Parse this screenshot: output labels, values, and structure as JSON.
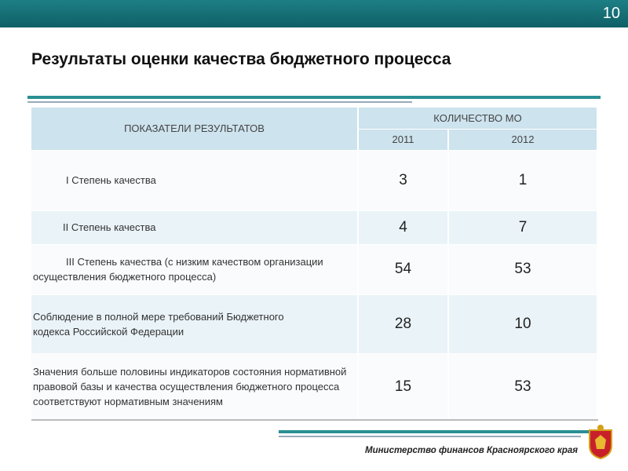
{
  "slide_number": "10",
  "title": "Результаты оценки качества бюджетного процесса",
  "table": {
    "header": {
      "indicators": "ПОКАЗАТЕЛИ РЕЗУЛЬТАТОВ",
      "count": "КОЛИЧЕСТВО МО",
      "years": [
        "2011",
        "2012"
      ]
    },
    "rows": [
      [
        "I Степень качества",
        3,
        1
      ],
      [
        "II Степень качества",
        4,
        7
      ],
      [
        "III Степень качества (с низким качеством организации осуществления бюджетного процесса)",
        54,
        53
      ],
      [
        "Соблюдение в полной мере требований Бюджетного кодекса Российской Федерации",
        28,
        10
      ],
      [
        "Значения больше половины индикаторов состояния нормативной правовой базы и качества осуществления бюджетного процесса соответствуют нормативным значениям",
        15,
        53
      ]
    ]
  },
  "footer": "Министерство финансов Красноярского края"
}
